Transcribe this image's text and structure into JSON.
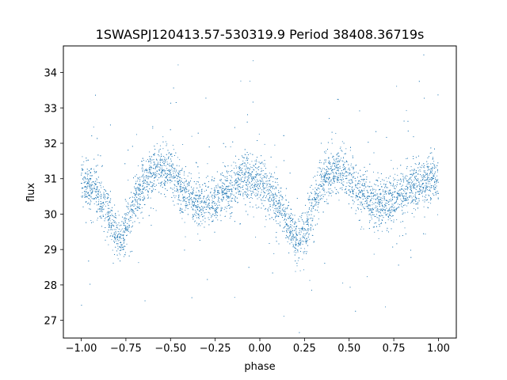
{
  "chart_data": {
    "type": "scatter",
    "title": "1SWASPJ120413.57-530319.9 Period 38408.36719s",
    "xlabel": "phase",
    "ylabel": "flux",
    "xlim": [
      -1.1,
      1.1
    ],
    "ylim": [
      26.5,
      34.75
    ],
    "x_ticks": [
      -1.0,
      -0.75,
      -0.5,
      -0.25,
      0.0,
      0.25,
      0.5,
      0.75,
      1.0
    ],
    "x_tick_labels": [
      "−1.00",
      "−0.75",
      "−0.50",
      "−0.25",
      "0.00",
      "0.25",
      "0.50",
      "0.75",
      "1.00"
    ],
    "y_ticks": [
      27,
      28,
      29,
      30,
      31,
      32,
      33,
      34
    ],
    "y_tick_labels": [
      "27",
      "28",
      "29",
      "30",
      "31",
      "32",
      "33",
      "34"
    ],
    "grid": false,
    "point_color": "#1f77b4",
    "series": [
      {
        "x": [
          -1.0,
          -0.95,
          -0.9,
          -0.85,
          -0.8,
          -0.78,
          -0.75,
          -0.7,
          -0.65,
          -0.6,
          -0.55,
          -0.5,
          -0.45,
          -0.4,
          -0.35,
          -0.3,
          -0.25,
          -0.2,
          -0.15,
          -0.1,
          -0.05,
          0.0,
          0.05,
          0.1,
          0.15,
          0.2,
          0.22,
          0.25,
          0.3,
          0.35,
          0.4,
          0.45,
          0.5,
          0.55,
          0.6,
          0.65,
          0.7,
          0.75,
          0.8,
          0.85,
          0.9,
          0.95,
          1.0
        ],
        "y": [
          31.0,
          30.8,
          30.5,
          30.0,
          29.4,
          29.2,
          29.6,
          30.4,
          30.9,
          31.2,
          31.3,
          31.1,
          30.8,
          30.5,
          30.3,
          30.3,
          30.4,
          30.6,
          30.8,
          31.0,
          31.0,
          30.9,
          30.7,
          30.3,
          29.8,
          29.3,
          29.2,
          29.5,
          30.3,
          30.9,
          31.2,
          31.2,
          31.0,
          30.7,
          30.4,
          30.3,
          30.3,
          30.4,
          30.6,
          30.8,
          30.9,
          31.0,
          31.0
        ]
      }
    ]
  }
}
